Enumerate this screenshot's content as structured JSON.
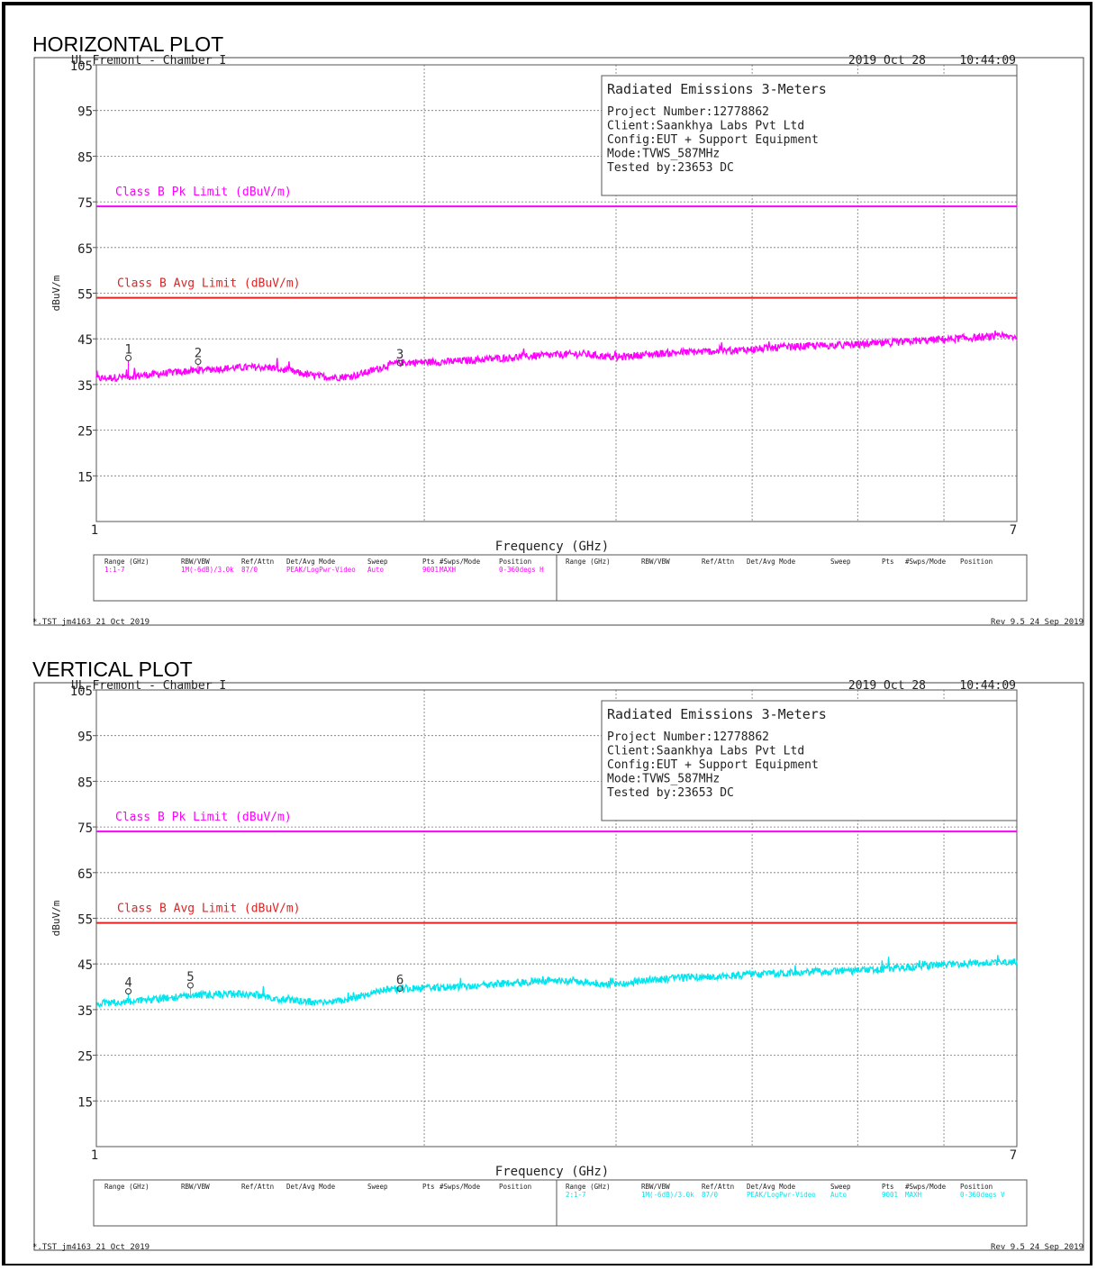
{
  "plots": [
    {
      "heading": "HORIZONTAL PLOT",
      "chamber": "UL Fremont - Chamber I",
      "date": "2019 Oct 28",
      "time": "10:44:09",
      "info_title": "Radiated Emissions 3-Meters",
      "info_lines": [
        "Project Number:12778862",
        "Client:Saankhya Labs Pvt Ltd",
        "Config:EUT + Support Equipment",
        "Mode:TVWS_587MHz",
        "Tested by:23653 DC"
      ],
      "pk_limit_label": "Class B Pk Limit (dBuV/m)",
      "avg_limit_label": "Class B Avg Limit (dBuV/m)",
      "ylabel": "dBuV/m",
      "xlabel": "Frequency (GHz)",
      "footer_left": "*.TST jm4163 21 Oct 2019",
      "footer_right": "Rev 9.5 24 Sep 2019",
      "table_headers": [
        "Range (GHz)",
        "RBW/VBW",
        "Ref/Attn",
        "Det/Avg Mode",
        "Sweep",
        "Pts",
        "#Swps/Mode",
        "Position"
      ],
      "table_row": [
        "1:1-7",
        "1M(-6dB)/3.0k",
        "87/0",
        "PEAK/LogPwr-Video",
        "Auto",
        "9001",
        "MAXH",
        "0-360degs H"
      ],
      "table_row_side": "left"
    },
    {
      "heading": "VERTICAL PLOT",
      "chamber": "UL Fremont - Chamber I",
      "date": "2019 Oct 28",
      "time": "10:44:09",
      "info_title": "Radiated Emissions 3-Meters",
      "info_lines": [
        "Project Number:12778862",
        "Client:Saankhya Labs Pvt Ltd",
        "Config:EUT + Support Equipment",
        "Mode:TVWS_587MHz",
        "Tested by:23653 DC"
      ],
      "pk_limit_label": "Class B Pk Limit (dBuV/m)",
      "avg_limit_label": "Class B Avg Limit (dBuV/m)",
      "ylabel": "dBuV/m",
      "xlabel": "Frequency (GHz)",
      "footer_left": "*.TST jm4163 21 Oct 2019",
      "footer_right": "Rev 9.5 24 Sep 2019",
      "table_headers": [
        "Range (GHz)",
        "RBW/VBW",
        "Ref/Attn",
        "Det/Avg Mode",
        "Sweep",
        "Pts",
        "#Swps/Mode",
        "Position"
      ],
      "table_row": [
        "2:1-7",
        "1M(-6dB)/3.0k",
        "87/0",
        "PEAK/LogPwr-Video",
        "Auto",
        "9001",
        "MAXH",
        "0-360degs V"
      ],
      "table_row_side": "right"
    }
  ],
  "chart_data": [
    {
      "type": "line",
      "x_scale": "log",
      "xlim": [
        1,
        7
      ],
      "ylim": [
        5,
        105
      ],
      "x_tick_labels": [
        "1",
        "7"
      ],
      "y_ticks": [
        15,
        25,
        35,
        45,
        55,
        65,
        75,
        85,
        95,
        105
      ],
      "grid": true,
      "trace_color": "#ff00ff",
      "pk_limit": 74,
      "pk_limit_color": "#ff00ff",
      "avg_limit": 54,
      "avg_limit_color": "#e52222",
      "trace": {
        "x": [
          1.0,
          1.05,
          1.1,
          1.15,
          1.2,
          1.25,
          1.3,
          1.35,
          1.4,
          1.45,
          1.5,
          1.55,
          1.6,
          1.65,
          1.7,
          1.75,
          1.8,
          1.85,
          1.9,
          2.0,
          2.1,
          2.2,
          2.3,
          2.4,
          2.5,
          2.6,
          2.7,
          2.8,
          2.9,
          3.0,
          3.2,
          3.4,
          3.6,
          3.8,
          4.0,
          4.3,
          4.6,
          5.0,
          5.4,
          5.8,
          6.2,
          6.6,
          7.0
        ],
        "y": [
          36.3,
          36.6,
          37.0,
          37.4,
          37.8,
          38.2,
          38.5,
          38.7,
          38.8,
          38.7,
          38.0,
          37.3,
          36.8,
          36.6,
          36.7,
          37.3,
          38.2,
          39.2,
          39.8,
          39.9,
          40.0,
          40.3,
          40.6,
          40.9,
          41.2,
          41.4,
          41.6,
          41.7,
          41.3,
          40.9,
          41.6,
          42.0,
          42.2,
          42.4,
          42.7,
          43.2,
          43.5,
          43.7,
          44.2,
          44.7,
          45.1,
          45.4,
          45.5
        ]
      },
      "markers": [
        {
          "label": "1",
          "x": 1.07,
          "y": 40.8
        },
        {
          "label": "2",
          "x": 1.24,
          "y": 40.0
        },
        {
          "label": "3",
          "x": 1.9,
          "y": 39.7
        }
      ]
    },
    {
      "type": "line",
      "x_scale": "log",
      "xlim": [
        1,
        7
      ],
      "ylim": [
        5,
        105
      ],
      "x_tick_labels": [
        "1",
        "7"
      ],
      "y_ticks": [
        15,
        25,
        35,
        45,
        55,
        65,
        75,
        85,
        95,
        105
      ],
      "grid": true,
      "trace_color": "#00e5ee",
      "pk_limit": 74,
      "pk_limit_color": "#ff00ff",
      "avg_limit": 54,
      "avg_limit_color": "#e52222",
      "trace": {
        "x": [
          1.0,
          1.05,
          1.1,
          1.15,
          1.2,
          1.25,
          1.3,
          1.35,
          1.4,
          1.45,
          1.5,
          1.55,
          1.6,
          1.65,
          1.7,
          1.75,
          1.8,
          1.85,
          1.9,
          2.0,
          2.1,
          2.2,
          2.3,
          2.4,
          2.5,
          2.6,
          2.7,
          2.8,
          2.9,
          3.0,
          3.2,
          3.4,
          3.6,
          3.8,
          4.0,
          4.3,
          4.6,
          5.0,
          5.4,
          5.8,
          6.2,
          6.6,
          7.0
        ],
        "y": [
          36.3,
          36.6,
          37.0,
          37.4,
          37.8,
          38.2,
          38.3,
          38.4,
          38.2,
          37.6,
          37.0,
          36.7,
          36.6,
          36.8,
          37.2,
          38.0,
          38.8,
          39.3,
          39.6,
          39.7,
          39.9,
          40.2,
          40.5,
          40.8,
          41.1,
          41.3,
          41.4,
          41.1,
          40.7,
          40.6,
          41.4,
          41.9,
          42.2,
          42.4,
          42.6,
          43.0,
          43.4,
          43.5,
          44.0,
          44.6,
          45.0,
          45.3,
          45.5
        ]
      },
      "markers": [
        {
          "label": "4",
          "x": 1.07,
          "y": 39.0
        },
        {
          "label": "5",
          "x": 1.22,
          "y": 40.3
        },
        {
          "label": "6",
          "x": 1.9,
          "y": 39.6
        }
      ]
    }
  ]
}
